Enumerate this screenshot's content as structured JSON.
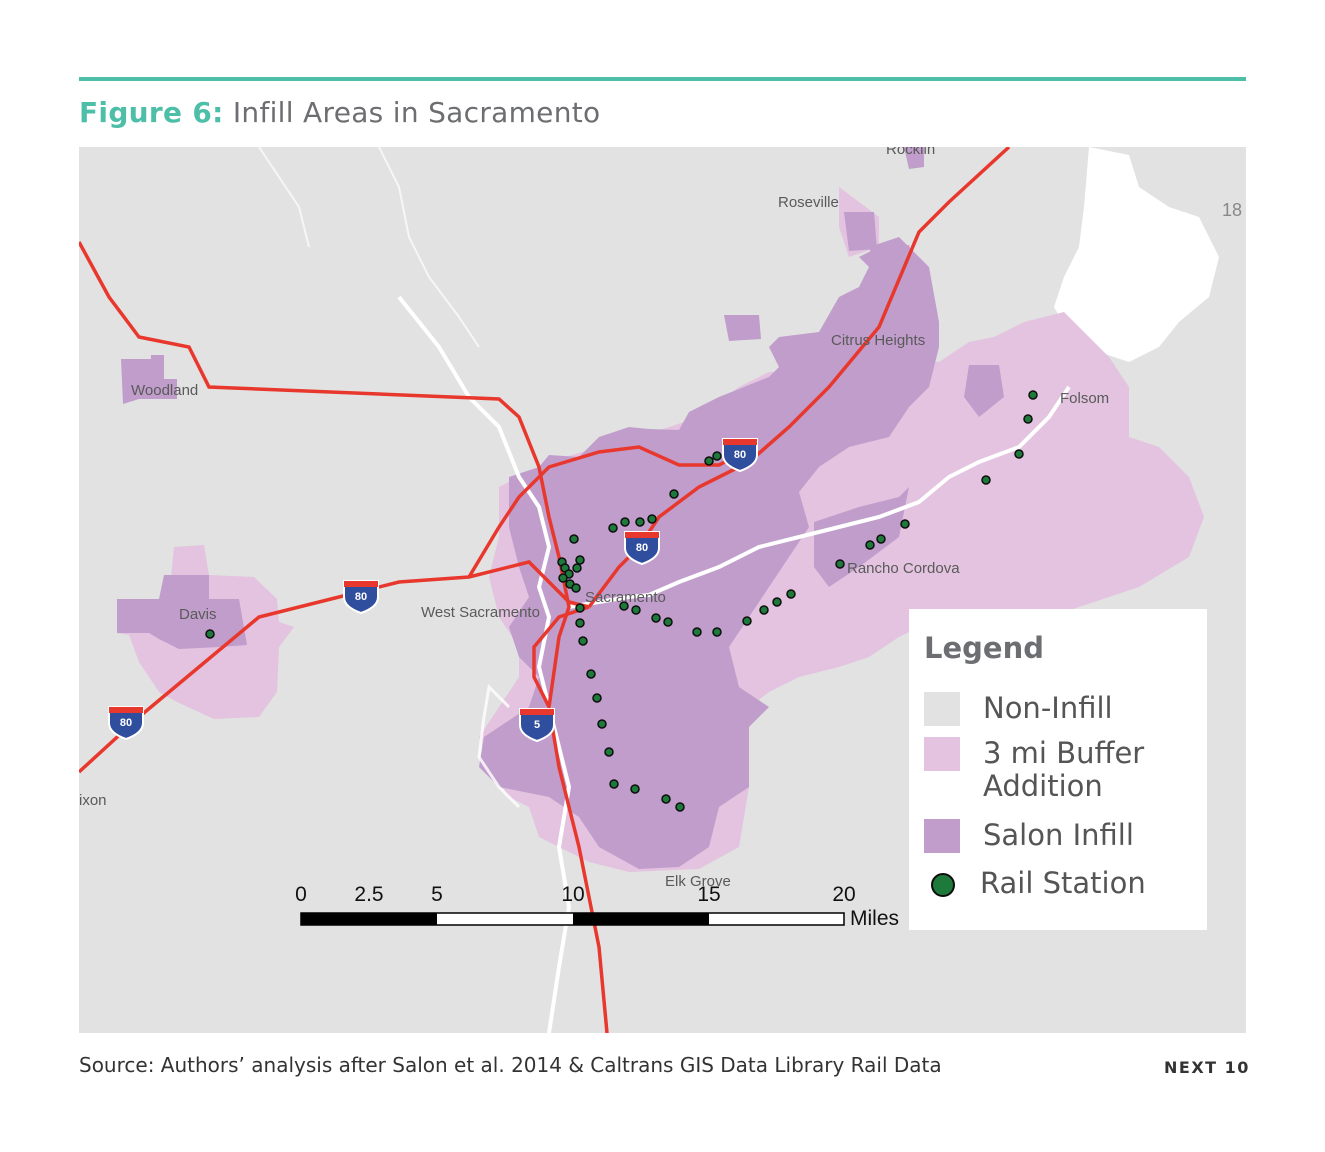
{
  "figure": {
    "label": "Figure 6:",
    "title": "Infill Areas in Sacramento"
  },
  "colors": {
    "accent": "#4dbfa8",
    "non_infill": "#e2e2e2",
    "buffer": "#e3c3df",
    "infill": "#c09dcb",
    "rail_station": "#1d7a3a",
    "highway": "#e8382d"
  },
  "map": {
    "places": [
      "Rocklin",
      "Roseville",
      "18",
      "Citrus Heights",
      "Woodland",
      "Folsom",
      "Rancho Cordova",
      "Sacramento",
      "West Sacramento",
      "Davis",
      "ixon",
      "Elk Grove"
    ],
    "shields": [
      "80",
      "80",
      "80",
      "80",
      "5"
    ],
    "scale_bar": {
      "labels": [
        "0",
        "2.5",
        "5",
        "10",
        "15",
        "20"
      ],
      "unit": "Miles"
    }
  },
  "legend": {
    "title": "Legend",
    "items": [
      {
        "label": "Non-Infill",
        "color": "#e2e2e2"
      },
      {
        "label": "3 mi Buffer Addition",
        "color": "#e3c3df"
      },
      {
        "label": "Salon Infill",
        "color": "#c09dcb"
      },
      {
        "label": "Rail Station",
        "icon": "circle-marker-icon"
      }
    ]
  },
  "footer": {
    "source": "Source: Authors’ analysis after Salon et al. 2014 & Caltrans GIS Data Library Rail Data",
    "brand": "NEXT 10"
  }
}
